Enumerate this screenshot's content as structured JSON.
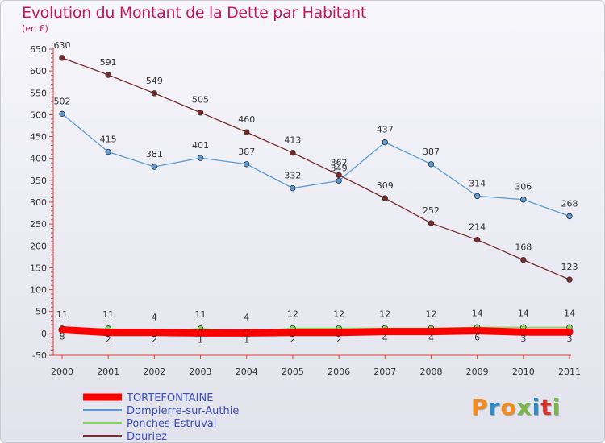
{
  "title": "Evolution du Montant de la Dette par Habitant",
  "unit": "(en €)",
  "logo": {
    "text": "Proxiti",
    "colors": [
      "#f28c1c",
      "#2e8bc9",
      "#f28c1c",
      "#7ab648",
      "#2e8bc9",
      "#d9342b",
      "#7ab648"
    ]
  },
  "chart_data": {
    "type": "line",
    "x": [
      "2000",
      "2001",
      "2002",
      "2003",
      "2004",
      "2005",
      "2006",
      "2007",
      "2008",
      "2009",
      "2010",
      "2011"
    ],
    "ylim": [
      -50,
      650
    ],
    "yticks": [
      -50,
      0,
      50,
      100,
      150,
      200,
      250,
      300,
      350,
      400,
      450,
      500,
      550,
      600,
      650
    ],
    "grid": false,
    "legend_position": "bottom-left",
    "series": [
      {
        "name": "TORTEFONTAINE",
        "color": "#ff0000",
        "values": [
          8,
          2,
          2,
          1,
          1,
          2,
          2,
          4,
          4,
          6,
          3,
          3
        ],
        "labels": [
          "8",
          "2",
          "2",
          "1",
          "1",
          "2",
          "2",
          "4",
          "4",
          "6",
          "3",
          "3"
        ]
      },
      {
        "name": "Dompierre-sur-Authie",
        "color": "#5b9bd5",
        "values": [
          502,
          415,
          381,
          401,
          387,
          332,
          349,
          437,
          387,
          314,
          306,
          268
        ],
        "labels": [
          "502",
          "415",
          "381",
          "401",
          "387",
          "332",
          "349",
          "437",
          "387",
          "314",
          "306",
          "268"
        ]
      },
      {
        "name": "Ponches-Estruval",
        "color": "#7ed957",
        "values": [
          11,
          11,
          4,
          11,
          4,
          12,
          12,
          12,
          12,
          14,
          14,
          14
        ],
        "labels": [
          "11",
          "11",
          "4",
          "11",
          "4",
          "12",
          "12",
          "12",
          "12",
          "14",
          "14",
          "14"
        ]
      },
      {
        "name": "Douriez",
        "color": "#7a2a2a",
        "values": [
          630,
          591,
          549,
          505,
          460,
          413,
          362,
          309,
          252,
          214,
          168,
          123
        ],
        "labels": [
          "630",
          "591",
          "549",
          "505",
          "460",
          "413",
          "362",
          "309",
          "252",
          "214",
          "168",
          "123"
        ]
      }
    ]
  }
}
